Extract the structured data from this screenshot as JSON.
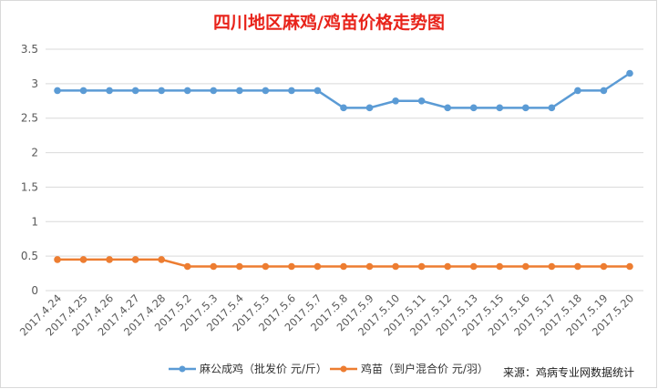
{
  "chart_data": {
    "type": "line",
    "title": "四川地区麻鸡/鸡苗价格走势图",
    "categories": [
      "2017.4.24",
      "2017.4.25",
      "2017.4.26",
      "2017.4.27",
      "2017.4.28",
      "2017.5.2",
      "2017.5.3",
      "2017.5.4",
      "2017.5.5",
      "2017.5.6",
      "2017.5.7",
      "2017.5.8",
      "2017.5.9",
      "2017.5.10",
      "2017.5.11",
      "2017.5.12",
      "2017.5.13",
      "2017.5.15",
      "2017.5.16",
      "2017.5.17",
      "2017.5.18",
      "2017.5.19",
      "2017.5.20"
    ],
    "series": [
      {
        "name": "麻公成鸡（批发价 元/斤）",
        "color": "#5b9bd5",
        "values": [
          2.9,
          2.9,
          2.9,
          2.9,
          2.9,
          2.9,
          2.9,
          2.9,
          2.9,
          2.9,
          2.9,
          2.65,
          2.65,
          2.75,
          2.75,
          2.65,
          2.65,
          2.65,
          2.65,
          2.65,
          2.9,
          2.9,
          3.15
        ]
      },
      {
        "name": "鸡苗（到户混合价 元/羽）",
        "color": "#ed7d31",
        "values": [
          0.45,
          0.45,
          0.45,
          0.45,
          0.45,
          0.35,
          0.35,
          0.35,
          0.35,
          0.35,
          0.35,
          0.35,
          0.35,
          0.35,
          0.35,
          0.35,
          0.35,
          0.35,
          0.35,
          0.35,
          0.35,
          0.35,
          0.35
        ]
      }
    ],
    "yticks": [
      "0",
      "0.5",
      "1",
      "1.5",
      "2",
      "2.5",
      "3",
      "3.5"
    ],
    "ylim": [
      0,
      3.5
    ],
    "grid": true,
    "legend_position": "bottom",
    "source_note": "来源：鸡病专业网数据统计"
  }
}
